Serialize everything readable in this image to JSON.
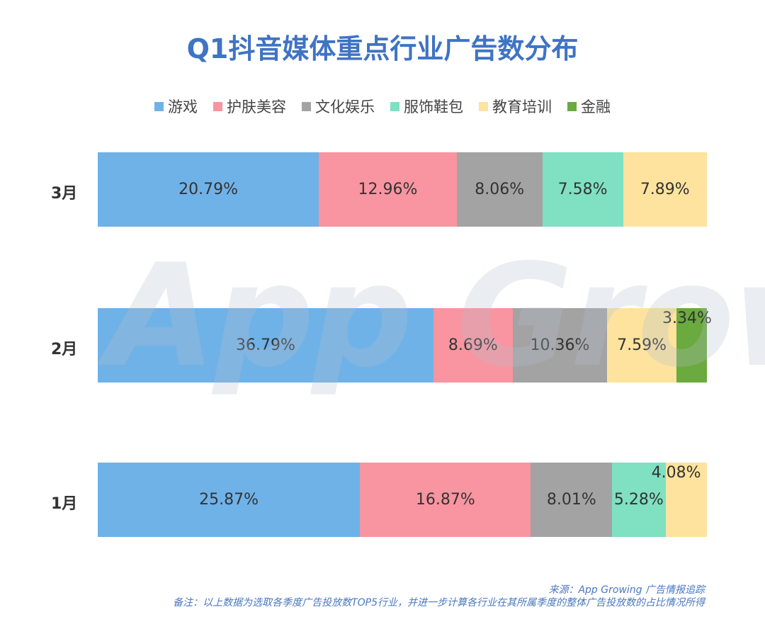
{
  "chart_data": {
    "type": "bar",
    "orientation": "horizontal",
    "stacked": true,
    "normalized": true,
    "title": "Q1抖音媒体重点行业广告数分布",
    "legend": [
      {
        "name": "游戏",
        "color": "#6fb2e8"
      },
      {
        "name": "护肤美容",
        "color": "#f895a0"
      },
      {
        "name": "文化娱乐",
        "color": "#a3a3a3"
      },
      {
        "name": "服饰鞋包",
        "color": "#7fe0c2"
      },
      {
        "name": "教育培训",
        "color": "#fde39e"
      },
      {
        "name": "金融",
        "color": "#6aaa3e"
      }
    ],
    "legend_position": "top",
    "rows": [
      {
        "label": "3月",
        "segments": [
          {
            "series": 0,
            "value": 20.79,
            "text": "20.79%"
          },
          {
            "series": 1,
            "value": 12.96,
            "text": "12.96%"
          },
          {
            "series": 2,
            "value": 8.06,
            "text": "8.06%"
          },
          {
            "series": 3,
            "value": 7.58,
            "text": "7.58%"
          },
          {
            "series": 4,
            "value": 7.89,
            "text": "7.89%"
          }
        ]
      },
      {
        "label": "2月",
        "segments": [
          {
            "series": 0,
            "value": 36.79,
            "text": "36.79%"
          },
          {
            "series": 1,
            "value": 8.69,
            "text": "8.69%"
          },
          {
            "series": 2,
            "value": 10.36,
            "text": "10.36%"
          },
          {
            "series": 4,
            "value": 7.59,
            "text": "7.59%"
          },
          {
            "series": 5,
            "value": 3.34,
            "text": "3.34%"
          }
        ]
      },
      {
        "label": "1月",
        "segments": [
          {
            "series": 0,
            "value": 25.87,
            "text": "25.87%"
          },
          {
            "series": 1,
            "value": 16.87,
            "text": "16.87%"
          },
          {
            "series": 2,
            "value": 8.01,
            "text": "8.01%"
          },
          {
            "series": 3,
            "value": 5.28,
            "text": "5.28%"
          },
          {
            "series": 4,
            "value": 4.08,
            "text": "4.08%"
          }
        ]
      }
    ]
  },
  "watermark": "App Growing",
  "footer": {
    "source": "来源：App Growing 广告情报追踪",
    "note": "备注：以上数据为选取各季度广告投放数TOP5行业，并进一步计算各行业在其所属季度的整体广告投放数的占比情况所得"
  }
}
